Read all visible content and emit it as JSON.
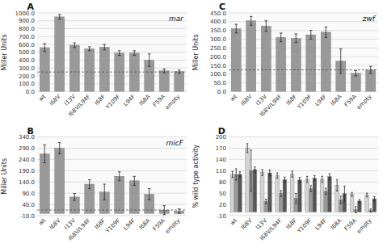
{
  "chart_data": [
    {
      "type": "bar",
      "title": "mar",
      "annotations": [
        "A"
      ],
      "ylabel": "Miller Units",
      "categories": [
        "wt",
        "I68V",
        "I13V",
        "I68V/L94F",
        "I68F",
        "Y109F",
        "L94F",
        "I68A",
        "F59A",
        "empty"
      ],
      "values": [
        560,
        950,
        590,
        545,
        565,
        490,
        490,
        400,
        265,
        255
      ],
      "errors": [
        50,
        30,
        30,
        25,
        35,
        30,
        30,
        80,
        25,
        20
      ],
      "reference_y": 250,
      "color": "#999999",
      "ylim": [
        0,
        1000
      ],
      "yticks": [
        {
          "value": 0,
          "label": "0.0"
        },
        {
          "value": 100,
          "label": "100.0"
        },
        {
          "value": 200,
          "label": "200.0"
        },
        {
          "value": 300,
          "label": "300.0"
        },
        {
          "value": 400,
          "label": "400.0"
        },
        {
          "value": 500,
          "label": "500.0"
        },
        {
          "value": 600,
          "label": "600.0"
        },
        {
          "value": 700,
          "label": "700.0"
        },
        {
          "value": 800,
          "label": "800.0"
        },
        {
          "value": 900,
          "label": "900.0"
        },
        {
          "value": 1000,
          "label": "1000.0"
        }
      ],
      "grid": true
    },
    {
      "type": "bar",
      "title": "zwf",
      "annotations": [
        "C"
      ],
      "ylabel": "Miller Units",
      "categories": [
        "wt",
        "I68V",
        "I13V",
        "I68V/L94F",
        "I68F",
        "Y109F",
        "L94F",
        "I68A",
        "F59A",
        "empty"
      ],
      "values": [
        360,
        405,
        375,
        310,
        305,
        325,
        340,
        175,
        105,
        125
      ],
      "errors": [
        25,
        25,
        30,
        25,
        25,
        25,
        30,
        70,
        15,
        20
      ],
      "reference_y": 125,
      "color": "#999999",
      "ylim": [
        0,
        450
      ],
      "yticks": [
        {
          "value": 0,
          "label": "0.0"
        },
        {
          "value": 50,
          "label": "50.0"
        },
        {
          "value": 100,
          "label": "100.0"
        },
        {
          "value": 150,
          "label": "150.0"
        },
        {
          "value": 200,
          "label": "200.0"
        },
        {
          "value": 250,
          "label": "250.0"
        },
        {
          "value": 300,
          "label": "300.0"
        },
        {
          "value": 350,
          "label": "350.0"
        },
        {
          "value": 400,
          "label": "400.0"
        },
        {
          "value": 450,
          "label": "450.0"
        }
      ],
      "grid": true
    },
    {
      "type": "bar",
      "title": "micF",
      "annotations": [
        "B"
      ],
      "ylabel": "Miller Units",
      "categories": [
        "wt",
        "I68V",
        "I13V",
        "I68V/L94F",
        "I68F",
        "Y109F",
        "L94F",
        "I68A",
        "F59A",
        "empty"
      ],
      "values": [
        265,
        290,
        73,
        130,
        95,
        165,
        145,
        85,
        15,
        10
      ],
      "errors": [
        40,
        25,
        15,
        20,
        35,
        20,
        20,
        25,
        20,
        10
      ],
      "reference_y": 15,
      "color": "#999999",
      "ylim": [
        -10,
        340
      ],
      "yticks": [
        {
          "value": -10,
          "label": "-10.0"
        },
        {
          "value": 40,
          "label": "40.0"
        },
        {
          "value": 90,
          "label": "90.0"
        },
        {
          "value": 140,
          "label": "140.0"
        },
        {
          "value": 190,
          "label": "190.0"
        },
        {
          "value": 240,
          "label": "240.0"
        },
        {
          "value": 290,
          "label": "290.0"
        },
        {
          "value": 340,
          "label": "340.0"
        }
      ],
      "grid": true
    },
    {
      "type": "bar",
      "annotations": [
        "D"
      ],
      "ylabel": "% wild type activity",
      "categories": [
        "wt",
        "I68V",
        "I13V",
        "I68V/L94F",
        "I68F",
        "Y109F",
        "L94F",
        "I68A",
        "F59A",
        "empty"
      ],
      "series": [
        {
          "color": "#d4d4d4",
          "values": [
            100,
            170,
            105,
            97,
            101,
            87,
            87,
            71,
            47,
            45
          ],
          "errors": [
            8,
            12,
            8,
            7,
            8,
            8,
            8,
            15,
            5,
            5
          ]
        },
        {
          "color": "#999999",
          "values": [
            100,
            110,
            28,
            49,
            36,
            62,
            55,
            32,
            6,
            4
          ],
          "errors": [
            15,
            55,
            6,
            8,
            13,
            8,
            8,
            10,
            8,
            4
          ]
        },
        {
          "color": "#555555",
          "values": [
            100,
            113,
            104,
            86,
            85,
            90,
            94,
            49,
            29,
            35
          ],
          "errors": [
            7,
            7,
            8,
            7,
            7,
            7,
            8,
            20,
            4,
            6
          ]
        }
      ],
      "ylim": [
        -10,
        200
      ],
      "yticks": [
        -10,
        20,
        50,
        80,
        110,
        140,
        170,
        200
      ],
      "grid": true
    }
  ]
}
